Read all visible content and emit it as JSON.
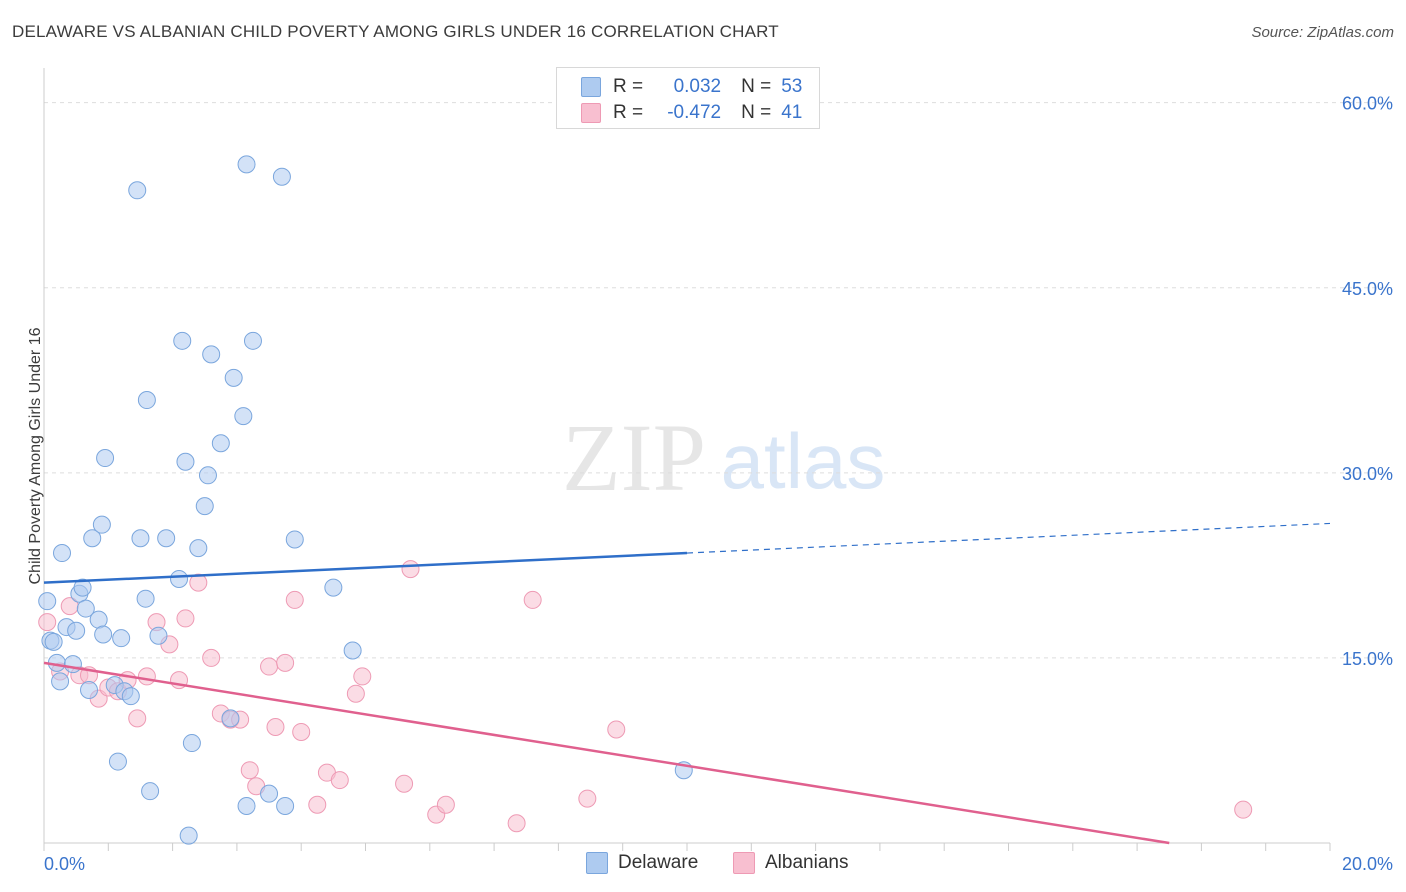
{
  "header": {
    "title": "DELAWARE VS ALBANIAN CHILD POVERTY AMONG GIRLS UNDER 16 CORRELATION CHART",
    "source": "Source: ZipAtlas.com"
  },
  "legend": {
    "rows": [
      {
        "r_label": "R =",
        "r_value": "0.032",
        "n_label": "N =",
        "n_value": "53"
      },
      {
        "r_label": "R =",
        "r_value": "-0.472",
        "n_label": "N =",
        "n_value": "41"
      }
    ]
  },
  "bottom_legend": [
    "Delaware",
    "Albanians"
  ],
  "watermark": {
    "zip": "ZIP",
    "atlas": "atlas"
  },
  "colors": {
    "delaware_fill": "#aecbf0",
    "delaware_stroke": "#7aa6dd",
    "delaware_line": "#2f6fc9",
    "albanians_fill": "#f8bfd0",
    "albanians_stroke": "#ee9ab4",
    "albanians_line": "#e0608e",
    "tick_label": "#3a74cc",
    "grid": "#dddddd"
  },
  "chart_data": {
    "type": "scatter",
    "title": "DELAWARE VS ALBANIAN CHILD POVERTY AMONG GIRLS UNDER 16 CORRELATION CHART",
    "xlabel": "",
    "ylabel": "Child Poverty Among Girls Under 16",
    "xlim": [
      0,
      20
    ],
    "ylim": [
      0,
      62
    ],
    "x_tick_labels": [
      {
        "value": 0,
        "label": "0.0%"
      },
      {
        "value": 20,
        "label": "20.0%"
      }
    ],
    "y_tick_labels": [
      {
        "value": 15,
        "label": "15.0%"
      },
      {
        "value": 30,
        "label": "30.0%"
      },
      {
        "value": 45,
        "label": "45.0%"
      },
      {
        "value": 60,
        "label": "60.0%"
      }
    ],
    "grid": true,
    "legend_position": "top-center",
    "series": [
      {
        "name": "Delaware",
        "r": 0.032,
        "n": 53,
        "points": [
          [
            0.05,
            19.6
          ],
          [
            0.1,
            16.4
          ],
          [
            0.15,
            16.3
          ],
          [
            0.2,
            14.6
          ],
          [
            0.25,
            13.1
          ],
          [
            0.28,
            23.5
          ],
          [
            0.35,
            17.5
          ],
          [
            0.45,
            14.5
          ],
          [
            0.5,
            17.2
          ],
          [
            0.55,
            20.2
          ],
          [
            0.6,
            20.7
          ],
          [
            0.65,
            19.0
          ],
          [
            0.7,
            12.4
          ],
          [
            0.75,
            24.7
          ],
          [
            0.85,
            18.1
          ],
          [
            0.9,
            25.8
          ],
          [
            0.92,
            16.9
          ],
          [
            0.95,
            31.2
          ],
          [
            1.1,
            12.8
          ],
          [
            1.15,
            6.6
          ],
          [
            1.2,
            16.6
          ],
          [
            1.25,
            12.3
          ],
          [
            1.35,
            11.9
          ],
          [
            1.45,
            52.9
          ],
          [
            1.5,
            24.7
          ],
          [
            1.58,
            19.8
          ],
          [
            1.6,
            35.9
          ],
          [
            1.65,
            4.2
          ],
          [
            1.78,
            16.8
          ],
          [
            1.9,
            24.7
          ],
          [
            2.1,
            21.4
          ],
          [
            2.15,
            40.7
          ],
          [
            2.2,
            30.9
          ],
          [
            2.25,
            0.6
          ],
          [
            2.3,
            8.1
          ],
          [
            2.4,
            23.9
          ],
          [
            2.5,
            27.3
          ],
          [
            2.55,
            29.8
          ],
          [
            2.6,
            39.6
          ],
          [
            2.75,
            32.4
          ],
          [
            2.9,
            10.1
          ],
          [
            2.95,
            37.7
          ],
          [
            3.1,
            34.6
          ],
          [
            3.15,
            55.0
          ],
          [
            3.15,
            3.0
          ],
          [
            3.25,
            40.7
          ],
          [
            3.5,
            4.0
          ],
          [
            3.7,
            54.0
          ],
          [
            3.75,
            3.0
          ],
          [
            3.9,
            24.6
          ],
          [
            4.5,
            20.7
          ],
          [
            4.8,
            15.6
          ],
          [
            9.95,
            5.9
          ]
        ]
      },
      {
        "name": "Albanians",
        "r": -0.472,
        "n": 41,
        "points": [
          [
            0.05,
            17.9
          ],
          [
            0.25,
            13.9
          ],
          [
            0.4,
            19.2
          ],
          [
            0.55,
            13.6
          ],
          [
            0.7,
            13.6
          ],
          [
            0.85,
            11.7
          ],
          [
            1.0,
            12.6
          ],
          [
            1.15,
            12.3
          ],
          [
            1.3,
            13.2
          ],
          [
            1.45,
            10.1
          ],
          [
            1.6,
            13.5
          ],
          [
            1.75,
            17.9
          ],
          [
            1.95,
            16.1
          ],
          [
            2.1,
            13.2
          ],
          [
            2.2,
            18.2
          ],
          [
            2.4,
            21.1
          ],
          [
            2.6,
            15.0
          ],
          [
            2.75,
            10.5
          ],
          [
            2.9,
            10.0
          ],
          [
            3.05,
            10.0
          ],
          [
            3.2,
            5.9
          ],
          [
            3.3,
            4.6
          ],
          [
            3.5,
            14.3
          ],
          [
            3.6,
            9.4
          ],
          [
            3.75,
            14.6
          ],
          [
            3.9,
            19.7
          ],
          [
            4.0,
            9.0
          ],
          [
            4.25,
            3.1
          ],
          [
            4.4,
            5.7
          ],
          [
            4.6,
            5.1
          ],
          [
            4.85,
            12.1
          ],
          [
            4.95,
            13.5
          ],
          [
            5.6,
            4.8
          ],
          [
            5.7,
            22.2
          ],
          [
            6.1,
            2.3
          ],
          [
            6.25,
            3.1
          ],
          [
            7.35,
            1.6
          ],
          [
            7.6,
            19.7
          ],
          [
            8.45,
            3.6
          ],
          [
            8.9,
            9.2
          ],
          [
            18.65,
            2.7
          ]
        ]
      }
    ],
    "trend_lines": [
      {
        "series": "Delaware",
        "x": [
          0,
          10,
          20
        ],
        "y": [
          21.1,
          23.5,
          25.9
        ],
        "solid_until_x": 10
      },
      {
        "series": "Albanians",
        "x": [
          0,
          17.5
        ],
        "y": [
          14.6,
          0
        ],
        "solid_until_x": 17.5
      }
    ]
  }
}
